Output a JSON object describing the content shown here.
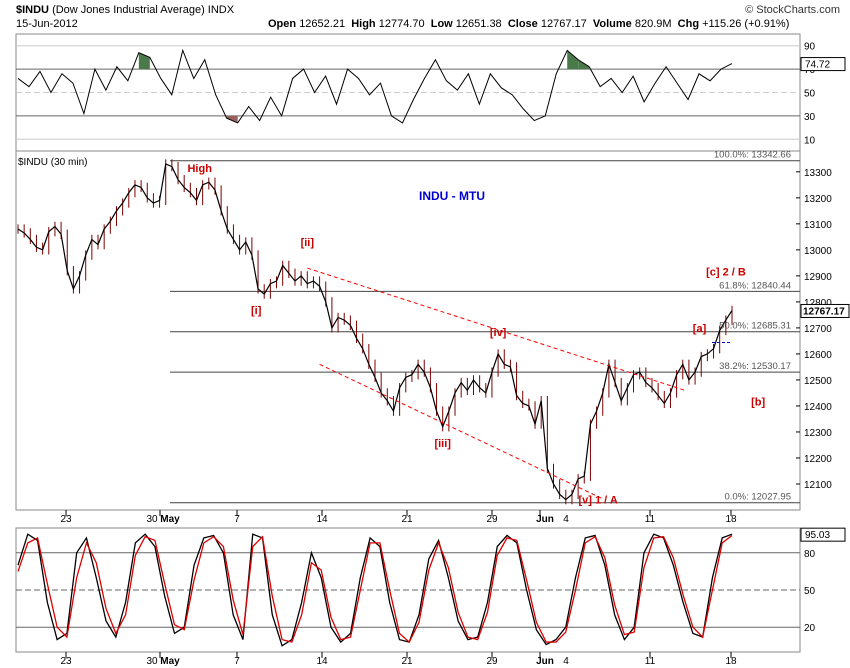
{
  "header": {
    "symbol": "$INDU",
    "name": "(Dow Jones Industrial Average)",
    "exchange": "INDX",
    "brand": "© StockCharts.com",
    "date": "15-Jun-2012",
    "open_label": "Open",
    "open": "12652.21",
    "high_label": "High",
    "high": "12774.70",
    "low_label": "Low",
    "low": "12651.38",
    "close_label": "Close",
    "close": "12767.17",
    "volume_label": "Volume",
    "volume": "820.9M",
    "chg_label": "Chg",
    "chg": "+115.26 (+0.91%)"
  },
  "price_panel_label": "$INDU (30 min)",
  "chart_title": "INDU - MTU",
  "colors": {
    "title": "#0000cc",
    "wave_labels": "#cc0000",
    "channel": "#ff0000",
    "candle": "#7a0000",
    "k_line": "#000000",
    "d_line": "#dd0000",
    "overbought_fill": "#4a7a4a",
    "oversold_fill": "#9a6060"
  },
  "chart_data": [
    {
      "type": "line",
      "panel": "RSI",
      "y_ticks": [
        "90",
        "70",
        "50",
        "30",
        "10"
      ],
      "ylim": [
        0,
        100
      ],
      "last_value": "74.72",
      "values": [
        62,
        55,
        68,
        50,
        66,
        58,
        32,
        70,
        52,
        72,
        60,
        84,
        80,
        62,
        48,
        86,
        62,
        78,
        48,
        28,
        24,
        38,
        26,
        46,
        30,
        62,
        70,
        50,
        64,
        40,
        70,
        62,
        48,
        58,
        30,
        24,
        44,
        62,
        78,
        60,
        52,
        66,
        40,
        66,
        54,
        48,
        36,
        26,
        30,
        66,
        86,
        78,
        72,
        55,
        62,
        50,
        64,
        42,
        58,
        72,
        58,
        44,
        66,
        60,
        70,
        74.72
      ]
    },
    {
      "type": "line",
      "panel": "price",
      "title": "INDU - MTU",
      "x_tick_labels": [
        "23",
        "30",
        "May",
        "7",
        "14",
        "21",
        "29",
        "Jun",
        "4",
        "11",
        "18"
      ],
      "y_ticks": [
        "13300",
        "13200",
        "13100",
        "13000",
        "12900",
        "12800",
        "12700",
        "12600",
        "12500",
        "12400",
        "12300",
        "12200",
        "12100"
      ],
      "ylim": [
        12000,
        13380
      ],
      "last_value": "12767.17",
      "fib_levels": [
        {
          "label": "100.0%: 13342.66",
          "value": 13342.66
        },
        {
          "label": "61.8%: 12840.44",
          "value": 12840.44
        },
        {
          "label": "50.0%: 12685.31",
          "value": 12685.31
        },
        {
          "label": "38.2%: 12530.17",
          "value": 12530.17
        },
        {
          "label": "0.0%: 12027.95",
          "value": 12027.95
        }
      ],
      "wave_labels": [
        "High",
        "[i]",
        "[ii]",
        "[iii]",
        "[iv]",
        "[v] 1 / A",
        "[a]",
        "[b]",
        "[c] 2 / B"
      ],
      "values": [
        13080,
        13065,
        13040,
        13010,
        13000,
        13070,
        13090,
        13060,
        12920,
        12850,
        12900,
        12980,
        13040,
        13020,
        13080,
        13110,
        13150,
        13180,
        13220,
        13250,
        13240,
        13200,
        13180,
        13190,
        13330,
        13320,
        13270,
        13240,
        13220,
        13190,
        13250,
        13260,
        13230,
        13150,
        13080,
        13040,
        13000,
        13030,
        12980,
        12850,
        12830,
        12870,
        12880,
        12940,
        12910,
        12880,
        12900,
        12870,
        12880,
        12860,
        12800,
        12700,
        12740,
        12730,
        12710,
        12660,
        12620,
        12560,
        12510,
        12450,
        12420,
        12380,
        12470,
        12510,
        12520,
        12560,
        12530,
        12470,
        12380,
        12320,
        12380,
        12450,
        12490,
        12460,
        12500,
        12470,
        12450,
        12530,
        12600,
        12560,
        12550,
        12440,
        12410,
        12400,
        12330,
        12420,
        12160,
        12100,
        12060,
        12040,
        12060,
        12120,
        12130,
        12330,
        12380,
        12450,
        12560,
        12490,
        12420,
        12470,
        12520,
        12530,
        12490,
        12470,
        12440,
        12410,
        12450,
        12520,
        12560,
        12500,
        12530,
        12590,
        12600,
        12620,
        12690,
        12730,
        12767
      ]
    },
    {
      "type": "line",
      "panel": "Slow Stochastic",
      "y_ticks": [
        "80",
        "50",
        "20"
      ],
      "ylim": [
        0,
        100
      ],
      "last_value": "95.03",
      "series": [
        {
          "values": [
            70,
            95,
            90,
            40,
            10,
            15,
            80,
            92,
            60,
            25,
            12,
            40,
            88,
            95,
            85,
            45,
            15,
            20,
            70,
            92,
            94,
            80,
            30,
            10,
            95,
            92,
            30,
            5,
            10,
            40,
            80,
            60,
            20,
            8,
            15,
            60,
            92,
            85,
            40,
            10,
            8,
            30,
            75,
            90,
            60,
            25,
            10,
            12,
            40,
            85,
            94,
            88,
            50,
            18,
            6,
            10,
            20,
            60,
            92,
            94,
            70,
            30,
            10,
            20,
            80,
            95,
            92,
            70,
            40,
            15,
            12,
            60,
            92,
            95
          ]
        },
        {
          "values": [
            65,
            88,
            92,
            55,
            20,
            12,
            60,
            88,
            72,
            35,
            15,
            30,
            78,
            93,
            90,
            55,
            22,
            18,
            58,
            88,
            93,
            85,
            42,
            14,
            85,
            93,
            45,
            10,
            8,
            30,
            72,
            66,
            28,
            10,
            12,
            50,
            88,
            88,
            50,
            15,
            8,
            24,
            66,
            88,
            68,
            32,
            12,
            10,
            32,
            78,
            92,
            90,
            58,
            24,
            8,
            8,
            16,
            50,
            88,
            93,
            76,
            38,
            14,
            16,
            68,
            92,
            93,
            76,
            46,
            20,
            12,
            50,
            88,
            94
          ]
        }
      ]
    }
  ]
}
